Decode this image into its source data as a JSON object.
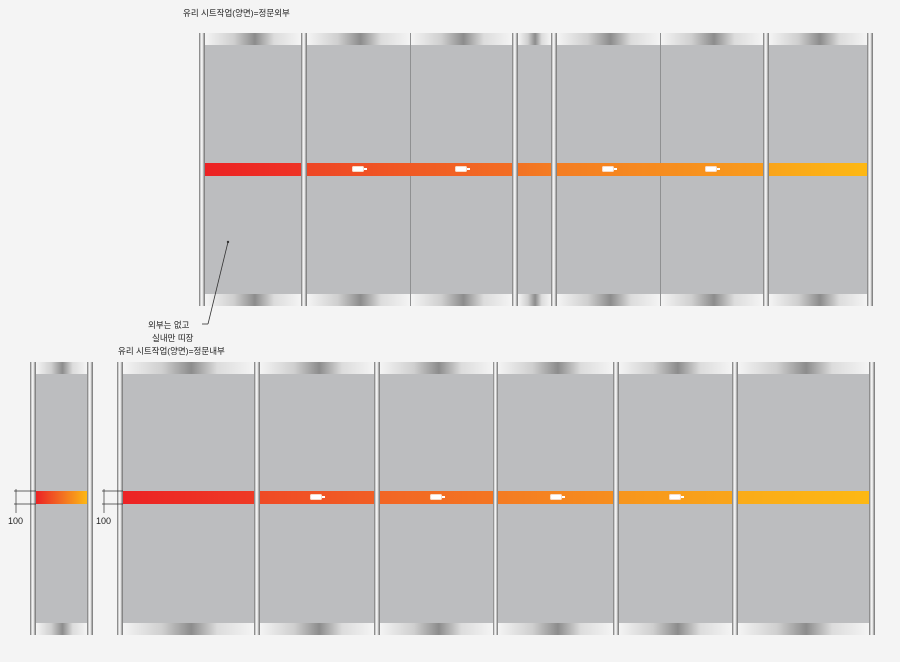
{
  "labels": {
    "top_title": "유리 시트작업(양면)=정문외부",
    "note_line1": "외부는 없고",
    "note_line2": "실내만 띠장",
    "bottom_title": "유리 시트작업(양면)=정문내부",
    "dim_left": "100",
    "dim_right": "100"
  },
  "colors": {
    "glass": "#bcbdbf",
    "band_start": "#ec2224",
    "band_mid": "#f26d23",
    "band_end": "#fdb813",
    "logo": "#ffffff"
  },
  "icons": {
    "logo": "brand-logo-icon"
  }
}
